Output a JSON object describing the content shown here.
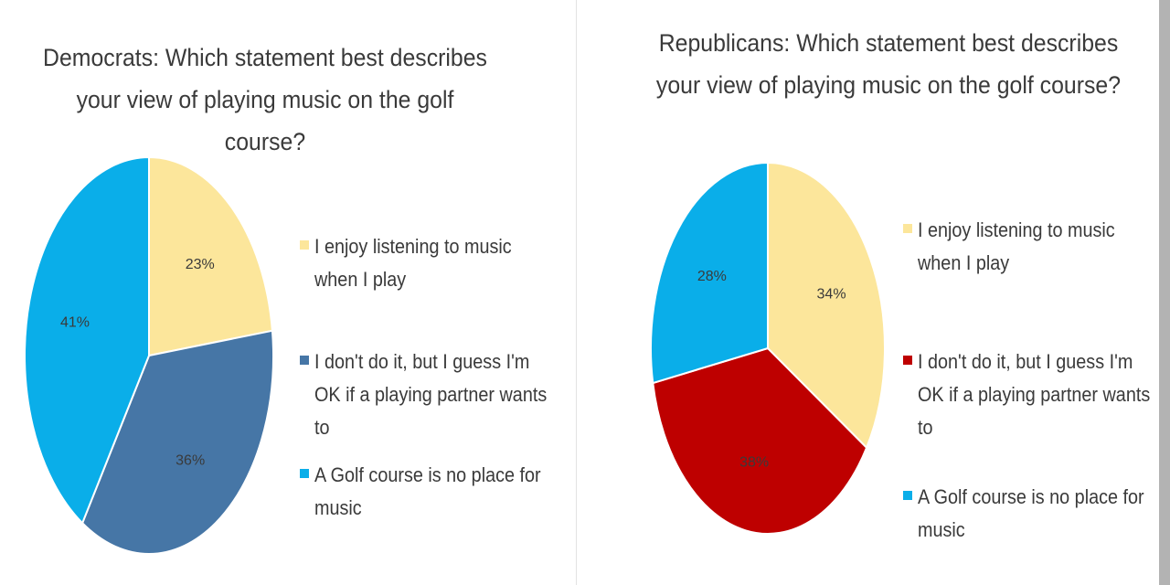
{
  "chart_data": [
    {
      "type": "pie",
      "title": "Democrats: Which statement best describes your view of playing music on the golf course?",
      "categories": [
        "I enjoy listening to music when I play",
        "I don't do it, but I guess I'm OK if a playing partner wants to",
        "A Golf course is no place for music"
      ],
      "values": [
        23,
        36,
        41
      ],
      "value_labels": [
        "23%",
        "36%",
        "41%"
      ],
      "colors": [
        "#FCE69B",
        "#4676A6",
        "#0AAEE9"
      ],
      "legend_placement": "right"
    },
    {
      "type": "pie",
      "title": "Republicans: Which statement best describes your view of playing music on the golf course?",
      "categories": [
        "I enjoy listening to music when I play",
        "I don't do it, but I guess I'm OK if a playing partner wants to",
        "A Golf course is no place for music"
      ],
      "values": [
        34,
        38,
        28
      ],
      "value_labels": [
        "34%",
        "38%",
        "28%"
      ],
      "colors": [
        "#FCE69B",
        "#BE0000",
        "#0AAEE9"
      ],
      "legend_placement": "right"
    }
  ]
}
